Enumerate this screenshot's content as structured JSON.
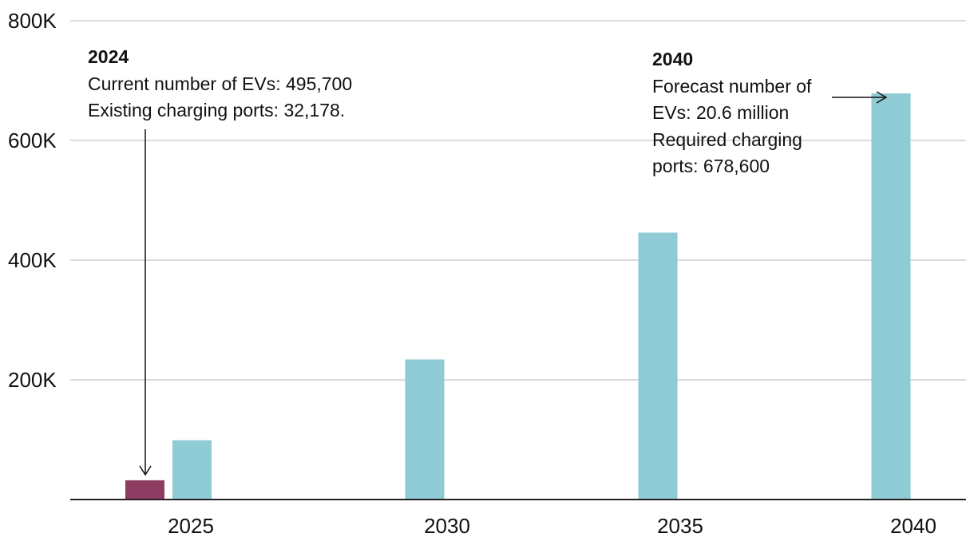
{
  "chart_data": {
    "type": "bar",
    "title": "",
    "xlabel": "",
    "ylabel": "",
    "ylim": [
      0,
      800000
    ],
    "y_ticks": [
      {
        "value": 200000,
        "label": "200K"
      },
      {
        "value": 400000,
        "label": "400K"
      },
      {
        "value": 600000,
        "label": "600K"
      },
      {
        "value": 800000,
        "label": "800K"
      }
    ],
    "categories": [
      "2025",
      "2030",
      "2035",
      "2040"
    ],
    "series": [
      {
        "name": "Existing charging ports",
        "color": "#8e3c62",
        "values": [
          32178,
          null,
          null,
          null
        ]
      },
      {
        "name": "Required charging ports",
        "color": "#8ecbd4",
        "values": [
          99000,
          234000,
          446000,
          678600
        ]
      }
    ],
    "grid": true,
    "annotations": [
      {
        "id": "ann-2024",
        "title": "2024",
        "lines": [
          "Current number of EVs: 495,700",
          "Existing charging ports: 32,178."
        ]
      },
      {
        "id": "ann-2040",
        "title": "2040",
        "lines": [
          "Forecast number of",
          "EVs: 20.6 million",
          "Required charging",
          "ports: 678,600"
        ]
      }
    ]
  }
}
